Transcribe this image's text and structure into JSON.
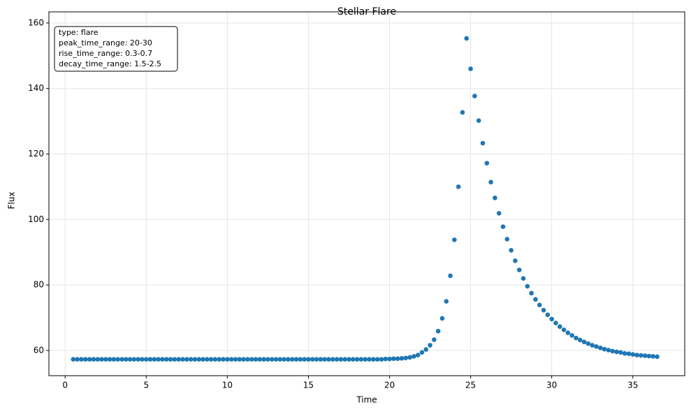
{
  "chart_data": {
    "type": "scatter",
    "title": "Stellar Flare",
    "x_label": "Time",
    "y_label": "Flux",
    "annotation_lines": [
      "type: flare",
      "peak_time_range: 20-30",
      "rise_time_range: 0.3-0.7",
      "decay_time_range: 1.5-2.5"
    ],
    "color": "#1f77b4",
    "grid": true,
    "xlim": [
      -1.0,
      38.2
    ],
    "ylim": [
      52.3,
      163.4
    ],
    "xticks": [
      0,
      5,
      10,
      15,
      20,
      25,
      30,
      35
    ],
    "yticks": [
      60,
      80,
      100,
      120,
      140,
      160
    ],
    "x": [
      0.5,
      0.75,
      1,
      1.25,
      1.5,
      1.75,
      2,
      2.25,
      2.5,
      2.75,
      3,
      3.25,
      3.5,
      3.75,
      4,
      4.25,
      4.5,
      4.75,
      5,
      5.25,
      5.5,
      5.75,
      6,
      6.25,
      6.5,
      6.75,
      7,
      7.25,
      7.5,
      7.75,
      8,
      8.25,
      8.5,
      8.75,
      9,
      9.25,
      9.5,
      9.75,
      10,
      10.25,
      10.5,
      10.75,
      11,
      11.25,
      11.5,
      11.75,
      12,
      12.25,
      12.5,
      12.75,
      13,
      13.25,
      13.5,
      13.75,
      14,
      14.25,
      14.5,
      14.75,
      15,
      15.25,
      15.5,
      15.75,
      16,
      16.25,
      16.5,
      16.75,
      17,
      17.25,
      17.5,
      17.75,
      18,
      18.25,
      18.5,
      18.75,
      19,
      19.25,
      19.5,
      19.75,
      20,
      20.25,
      20.5,
      20.75,
      21,
      21.25,
      21.5,
      21.75,
      22,
      22.25,
      22.5,
      22.75,
      23,
      23.25,
      23.5,
      23.75,
      24,
      24.25,
      24.5,
      24.75,
      25,
      25.25,
      25.5,
      25.75,
      26,
      26.25,
      26.5,
      26.75,
      27,
      27.25,
      27.5,
      27.75,
      28,
      28.25,
      28.5,
      28.75,
      29,
      29.25,
      29.5,
      29.75,
      30,
      30.25,
      30.5,
      30.75,
      31,
      31.25,
      31.5,
      31.75,
      32,
      32.25,
      32.5,
      32.75,
      33,
      33.25,
      33.5,
      33.75,
      34,
      34.25,
      34.5,
      34.75,
      35,
      35.25,
      35.5,
      35.75,
      36,
      36.25,
      36.5
    ],
    "values": [
      57.3,
      57.3,
      57.3,
      57.3,
      57.3,
      57.3,
      57.3,
      57.3,
      57.3,
      57.3,
      57.3,
      57.3,
      57.3,
      57.3,
      57.3,
      57.3,
      57.3,
      57.3,
      57.3,
      57.3,
      57.3,
      57.3,
      57.3,
      57.3,
      57.3,
      57.3,
      57.3,
      57.3,
      57.3,
      57.3,
      57.3,
      57.3,
      57.3,
      57.3,
      57.3,
      57.3,
      57.3,
      57.3,
      57.3,
      57.3,
      57.3,
      57.3,
      57.3,
      57.3,
      57.3,
      57.3,
      57.3,
      57.3,
      57.3,
      57.3,
      57.3,
      57.3,
      57.3,
      57.3,
      57.3,
      57.3,
      57.3,
      57.3,
      57.3,
      57.3,
      57.3,
      57.3,
      57.3,
      57.3,
      57.3,
      57.3,
      57.3,
      57.3,
      57.3,
      57.3,
      57.3,
      57.3,
      57.3,
      57.3,
      57.3,
      57.3,
      57.3,
      57.4,
      57.4,
      57.5,
      57.5,
      57.6,
      57.7,
      57.9,
      58.2,
      58.6,
      59.4,
      60.3,
      61.6,
      63.3,
      65.9,
      69.8,
      75.0,
      82.8,
      93.8,
      110.0,
      132.7,
      155.3,
      146.0,
      137.7,
      130.2,
      123.3,
      117.2,
      111.4,
      106.6,
      101.9,
      97.8,
      94.0,
      90.6,
      87.4,
      84.6,
      82.0,
      79.6,
      77.5,
      75.6,
      73.9,
      72.3,
      70.9,
      69.6,
      68.4,
      67.3,
      66.3,
      65.4,
      64.6,
      63.8,
      63.2,
      62.6,
      62.1,
      61.6,
      61.2,
      60.8,
      60.4,
      60.1,
      59.8,
      59.6,
      59.4,
      59.1,
      59.0,
      58.8,
      58.6,
      58.5,
      58.4,
      58.3,
      58.2,
      58.1
    ]
  }
}
